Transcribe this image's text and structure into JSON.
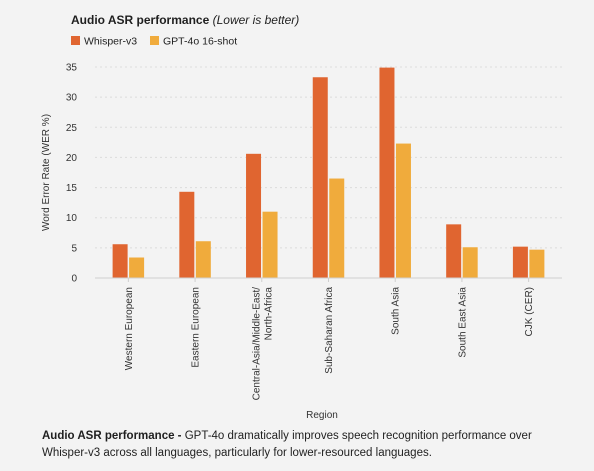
{
  "chart_data": {
    "type": "bar",
    "title": "Audio ASR performance",
    "title_note": "(Lower is better)",
    "xlabel": "Region",
    "ylabel": "Word Error Rate (WER %)",
    "ylim": [
      0,
      35
    ],
    "yticks": [
      0,
      5,
      10,
      15,
      20,
      25,
      30,
      35
    ],
    "grid": "horizontal",
    "legend_placement": "top-left",
    "categories": [
      "Western European",
      "Eastern European",
      "Central-Asia/Middle-East/ North-Africa",
      "Sub-Saharan Africa",
      "South Asia",
      "South East Asia",
      "CJK (CER)"
    ],
    "category_lines": [
      [
        "Western European"
      ],
      [
        "Eastern European"
      ],
      [
        "Central-Asia/Middle-East/",
        "North-Africa"
      ],
      [
        "Sub-Saharan Africa"
      ],
      [
        "South Asia"
      ],
      [
        "South East Asia"
      ],
      [
        "CJK (CER)"
      ]
    ],
    "series": [
      {
        "name": "Whisper-v3",
        "color": "#e06530",
        "values": [
          5.6,
          14.3,
          20.6,
          33.3,
          34.9,
          8.9,
          5.2
        ]
      },
      {
        "name": "GPT-4o 16-shot",
        "color": "#f0ab3c",
        "values": [
          3.4,
          6.1,
          11.0,
          16.5,
          22.3,
          5.1,
          4.7
        ]
      }
    ]
  },
  "caption": {
    "bold": "Audio ASR performance - ",
    "text": "GPT-4o dramatically improves speech recognition performance over Whisper-v3 across all languages, particularly for lower-resourced languages."
  }
}
